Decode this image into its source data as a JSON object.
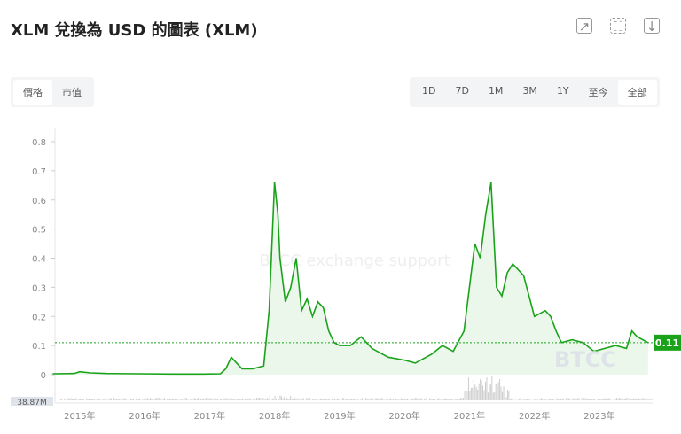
{
  "title": "XLM 兌換為 USD 的圖表 (XLM)",
  "header_icons": [
    "share-icon",
    "fullscreen-icon",
    "download-icon"
  ],
  "type_tabs": [
    {
      "label": "價格",
      "active": true
    },
    {
      "label": "市值",
      "active": false
    }
  ],
  "range_tabs": [
    {
      "label": "1D"
    },
    {
      "label": "7D"
    },
    {
      "label": "1M"
    },
    {
      "label": "3M"
    },
    {
      "label": "1Y"
    },
    {
      "label": "至今"
    },
    {
      "label": "全部",
      "active": true
    }
  ],
  "watermark": "BTCC exchange support",
  "logo_text": "BTCC",
  "colors": {
    "line": "#1aa31a",
    "fill": "#e6f5e6",
    "current_label": "#1aa31a"
  },
  "chart_data": {
    "type": "area",
    "ylim": [
      0,
      0.8
    ],
    "yticks": [
      "0",
      "0.1",
      "0.2",
      "0.3",
      "0.4",
      "0.5",
      "0.6",
      "0.7",
      "0.8"
    ],
    "xticks": [
      "2015年",
      "2016年",
      "2017年",
      "2018年",
      "2019年",
      "2020年",
      "2021年",
      "2022年",
      "2023年"
    ],
    "current_price": "0.11",
    "volume_label": "38.87M",
    "grid": false,
    "series": [
      {
        "points": [
          [
            "2014-08",
            0.003
          ],
          [
            "2014-12",
            0.004
          ],
          [
            "2015-01",
            0.01
          ],
          [
            "2015-03",
            0.006
          ],
          [
            "2015-06",
            0.004
          ],
          [
            "2015-12",
            0.003
          ],
          [
            "2016-06",
            0.002
          ],
          [
            "2016-12",
            0.002
          ],
          [
            "2017-03",
            0.003
          ],
          [
            "2017-04",
            0.02
          ],
          [
            "2017-05",
            0.06
          ],
          [
            "2017-06",
            0.04
          ],
          [
            "2017-07",
            0.02
          ],
          [
            "2017-09",
            0.02
          ],
          [
            "2017-11",
            0.03
          ],
          [
            "2017-12",
            0.22
          ],
          [
            "2018-01",
            0.66
          ],
          [
            "2018-01-20",
            0.55
          ],
          [
            "2018-02",
            0.4
          ],
          [
            "2018-03",
            0.25
          ],
          [
            "2018-04",
            0.3
          ],
          [
            "2018-05",
            0.4
          ],
          [
            "2018-06",
            0.22
          ],
          [
            "2018-07",
            0.26
          ],
          [
            "2018-08",
            0.2
          ],
          [
            "2018-09",
            0.25
          ],
          [
            "2018-10",
            0.23
          ],
          [
            "2018-11",
            0.15
          ],
          [
            "2018-12",
            0.11
          ],
          [
            "2019-01",
            0.1
          ],
          [
            "2019-03",
            0.1
          ],
          [
            "2019-05",
            0.13
          ],
          [
            "2019-07",
            0.09
          ],
          [
            "2019-10",
            0.06
          ],
          [
            "2020-01",
            0.05
          ],
          [
            "2020-03",
            0.04
          ],
          [
            "2020-06",
            0.07
          ],
          [
            "2020-08",
            0.1
          ],
          [
            "2020-10",
            0.08
          ],
          [
            "2020-12",
            0.15
          ],
          [
            "2021-01",
            0.3
          ],
          [
            "2021-02",
            0.45
          ],
          [
            "2021-03",
            0.4
          ],
          [
            "2021-04",
            0.55
          ],
          [
            "2021-05",
            0.66
          ],
          [
            "2021-06",
            0.3
          ],
          [
            "2021-07",
            0.27
          ],
          [
            "2021-08",
            0.35
          ],
          [
            "2021-09",
            0.38
          ],
          [
            "2021-10",
            0.36
          ],
          [
            "2021-11",
            0.34
          ],
          [
            "2021-12",
            0.27
          ],
          [
            "2022-01",
            0.2
          ],
          [
            "2022-03",
            0.22
          ],
          [
            "2022-04",
            0.2
          ],
          [
            "2022-05",
            0.15
          ],
          [
            "2022-06",
            0.11
          ],
          [
            "2022-08",
            0.12
          ],
          [
            "2022-10",
            0.11
          ],
          [
            "2022-12",
            0.08
          ],
          [
            "2023-02",
            0.09
          ],
          [
            "2023-04",
            0.1
          ],
          [
            "2023-06",
            0.09
          ],
          [
            "2023-07",
            0.15
          ],
          [
            "2023-08",
            0.13
          ],
          [
            "2023-10",
            0.11
          ]
        ]
      }
    ]
  }
}
